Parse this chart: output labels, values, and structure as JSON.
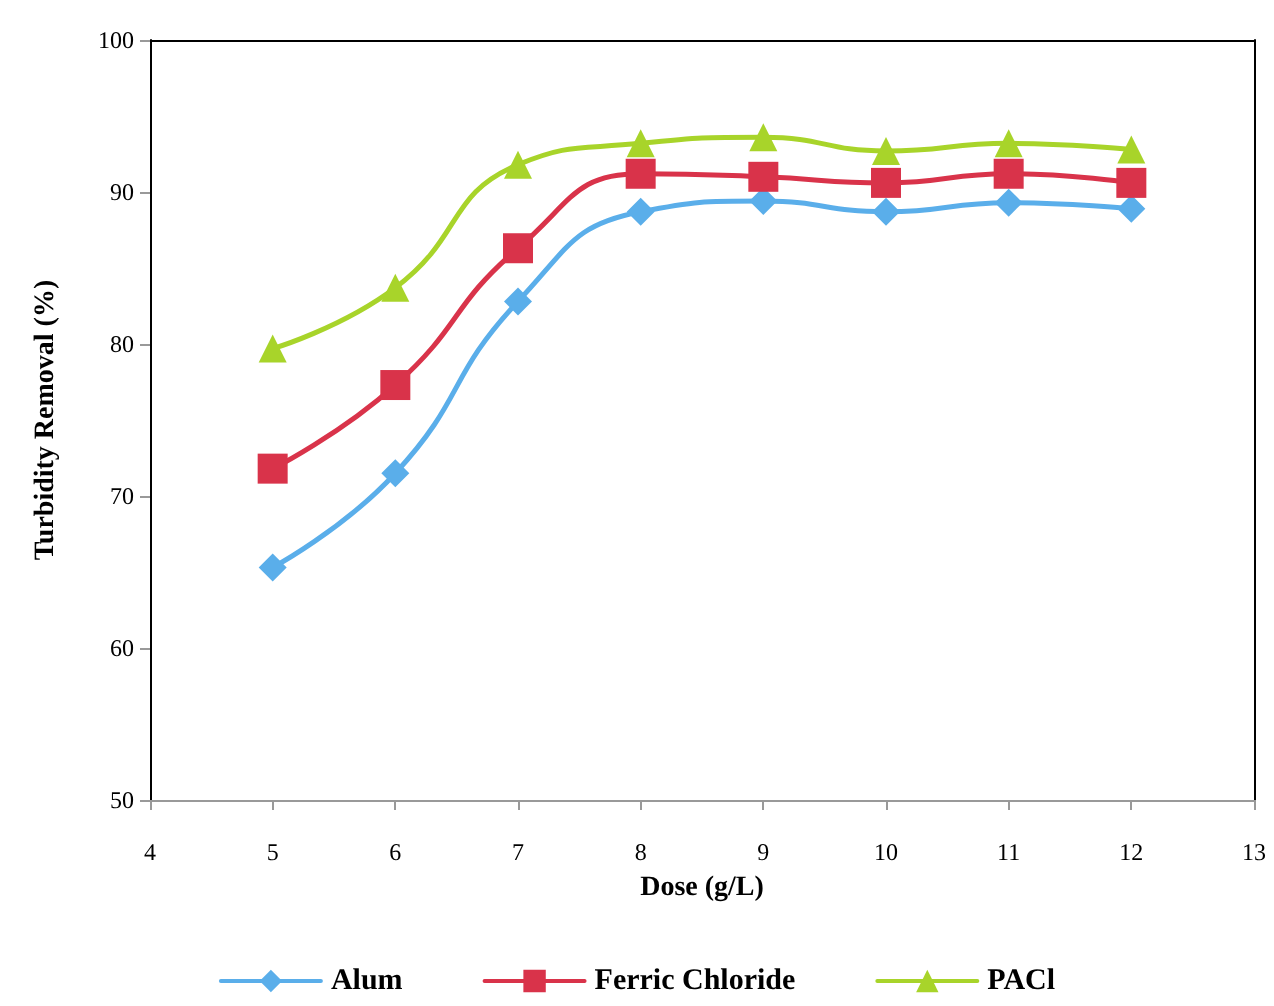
{
  "chart_data": {
    "type": "line",
    "xlabel": "Dose (g/L)",
    "ylabel": "Turbidity Removal (%)",
    "x": [
      5,
      6,
      7,
      8,
      9,
      10,
      11,
      12
    ],
    "series": [
      {
        "name": "Alum",
        "color": "#5aaeea",
        "marker": "diamond",
        "values": [
          65.3,
          71.5,
          82.8,
          88.7,
          89.4,
          88.7,
          89.3,
          88.9
        ]
      },
      {
        "name": "Ferric Chloride",
        "color": "#d9334a",
        "marker": "square",
        "values": [
          71.8,
          77.3,
          86.3,
          91.2,
          91.0,
          90.6,
          91.2,
          90.6
        ]
      },
      {
        "name": "PACl",
        "color": "#a8d42a",
        "marker": "triangle",
        "values": [
          79.7,
          83.7,
          91.8,
          93.2,
          93.6,
          92.7,
          93.2,
          92.8
        ]
      }
    ],
    "xlim": [
      4,
      13
    ],
    "xticks": [
      4,
      5,
      6,
      7,
      8,
      9,
      10,
      11,
      12,
      13
    ],
    "ylim": [
      50,
      100
    ],
    "yticks": [
      50,
      60,
      70,
      80,
      90,
      100
    ],
    "grid": false,
    "legend": "bottom",
    "line_style": "solid"
  }
}
